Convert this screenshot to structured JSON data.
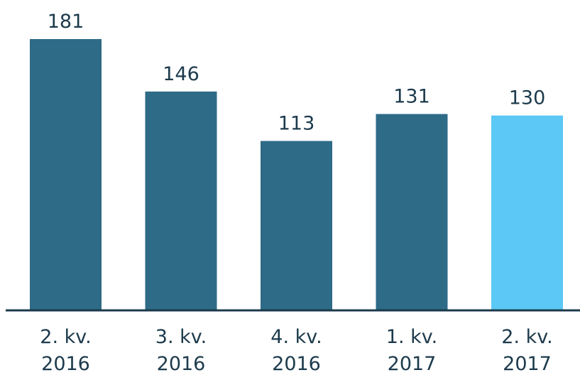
{
  "chart_data": {
    "type": "bar",
    "title": "",
    "xlabel": "",
    "ylabel": "",
    "categories": [
      [
        "2. kv.",
        "2016"
      ],
      [
        "3. kv.",
        "2016"
      ],
      [
        "4. kv.",
        "2016"
      ],
      [
        "1. kv.",
        "2017"
      ],
      [
        "2. kv.",
        "2017"
      ]
    ],
    "values": [
      181,
      146,
      113,
      131,
      130
    ],
    "data_labels": [
      "181",
      "146",
      "113",
      "131",
      "130"
    ],
    "ylim": [
      0,
      181
    ],
    "grid": false,
    "legend": "none",
    "colors": {
      "default_bar": "#2e6b87",
      "highlight_bar": "#5bc8f5",
      "axis": "#1c3a4c",
      "text": "#1c3a4c"
    },
    "highlight_index": 4
  }
}
